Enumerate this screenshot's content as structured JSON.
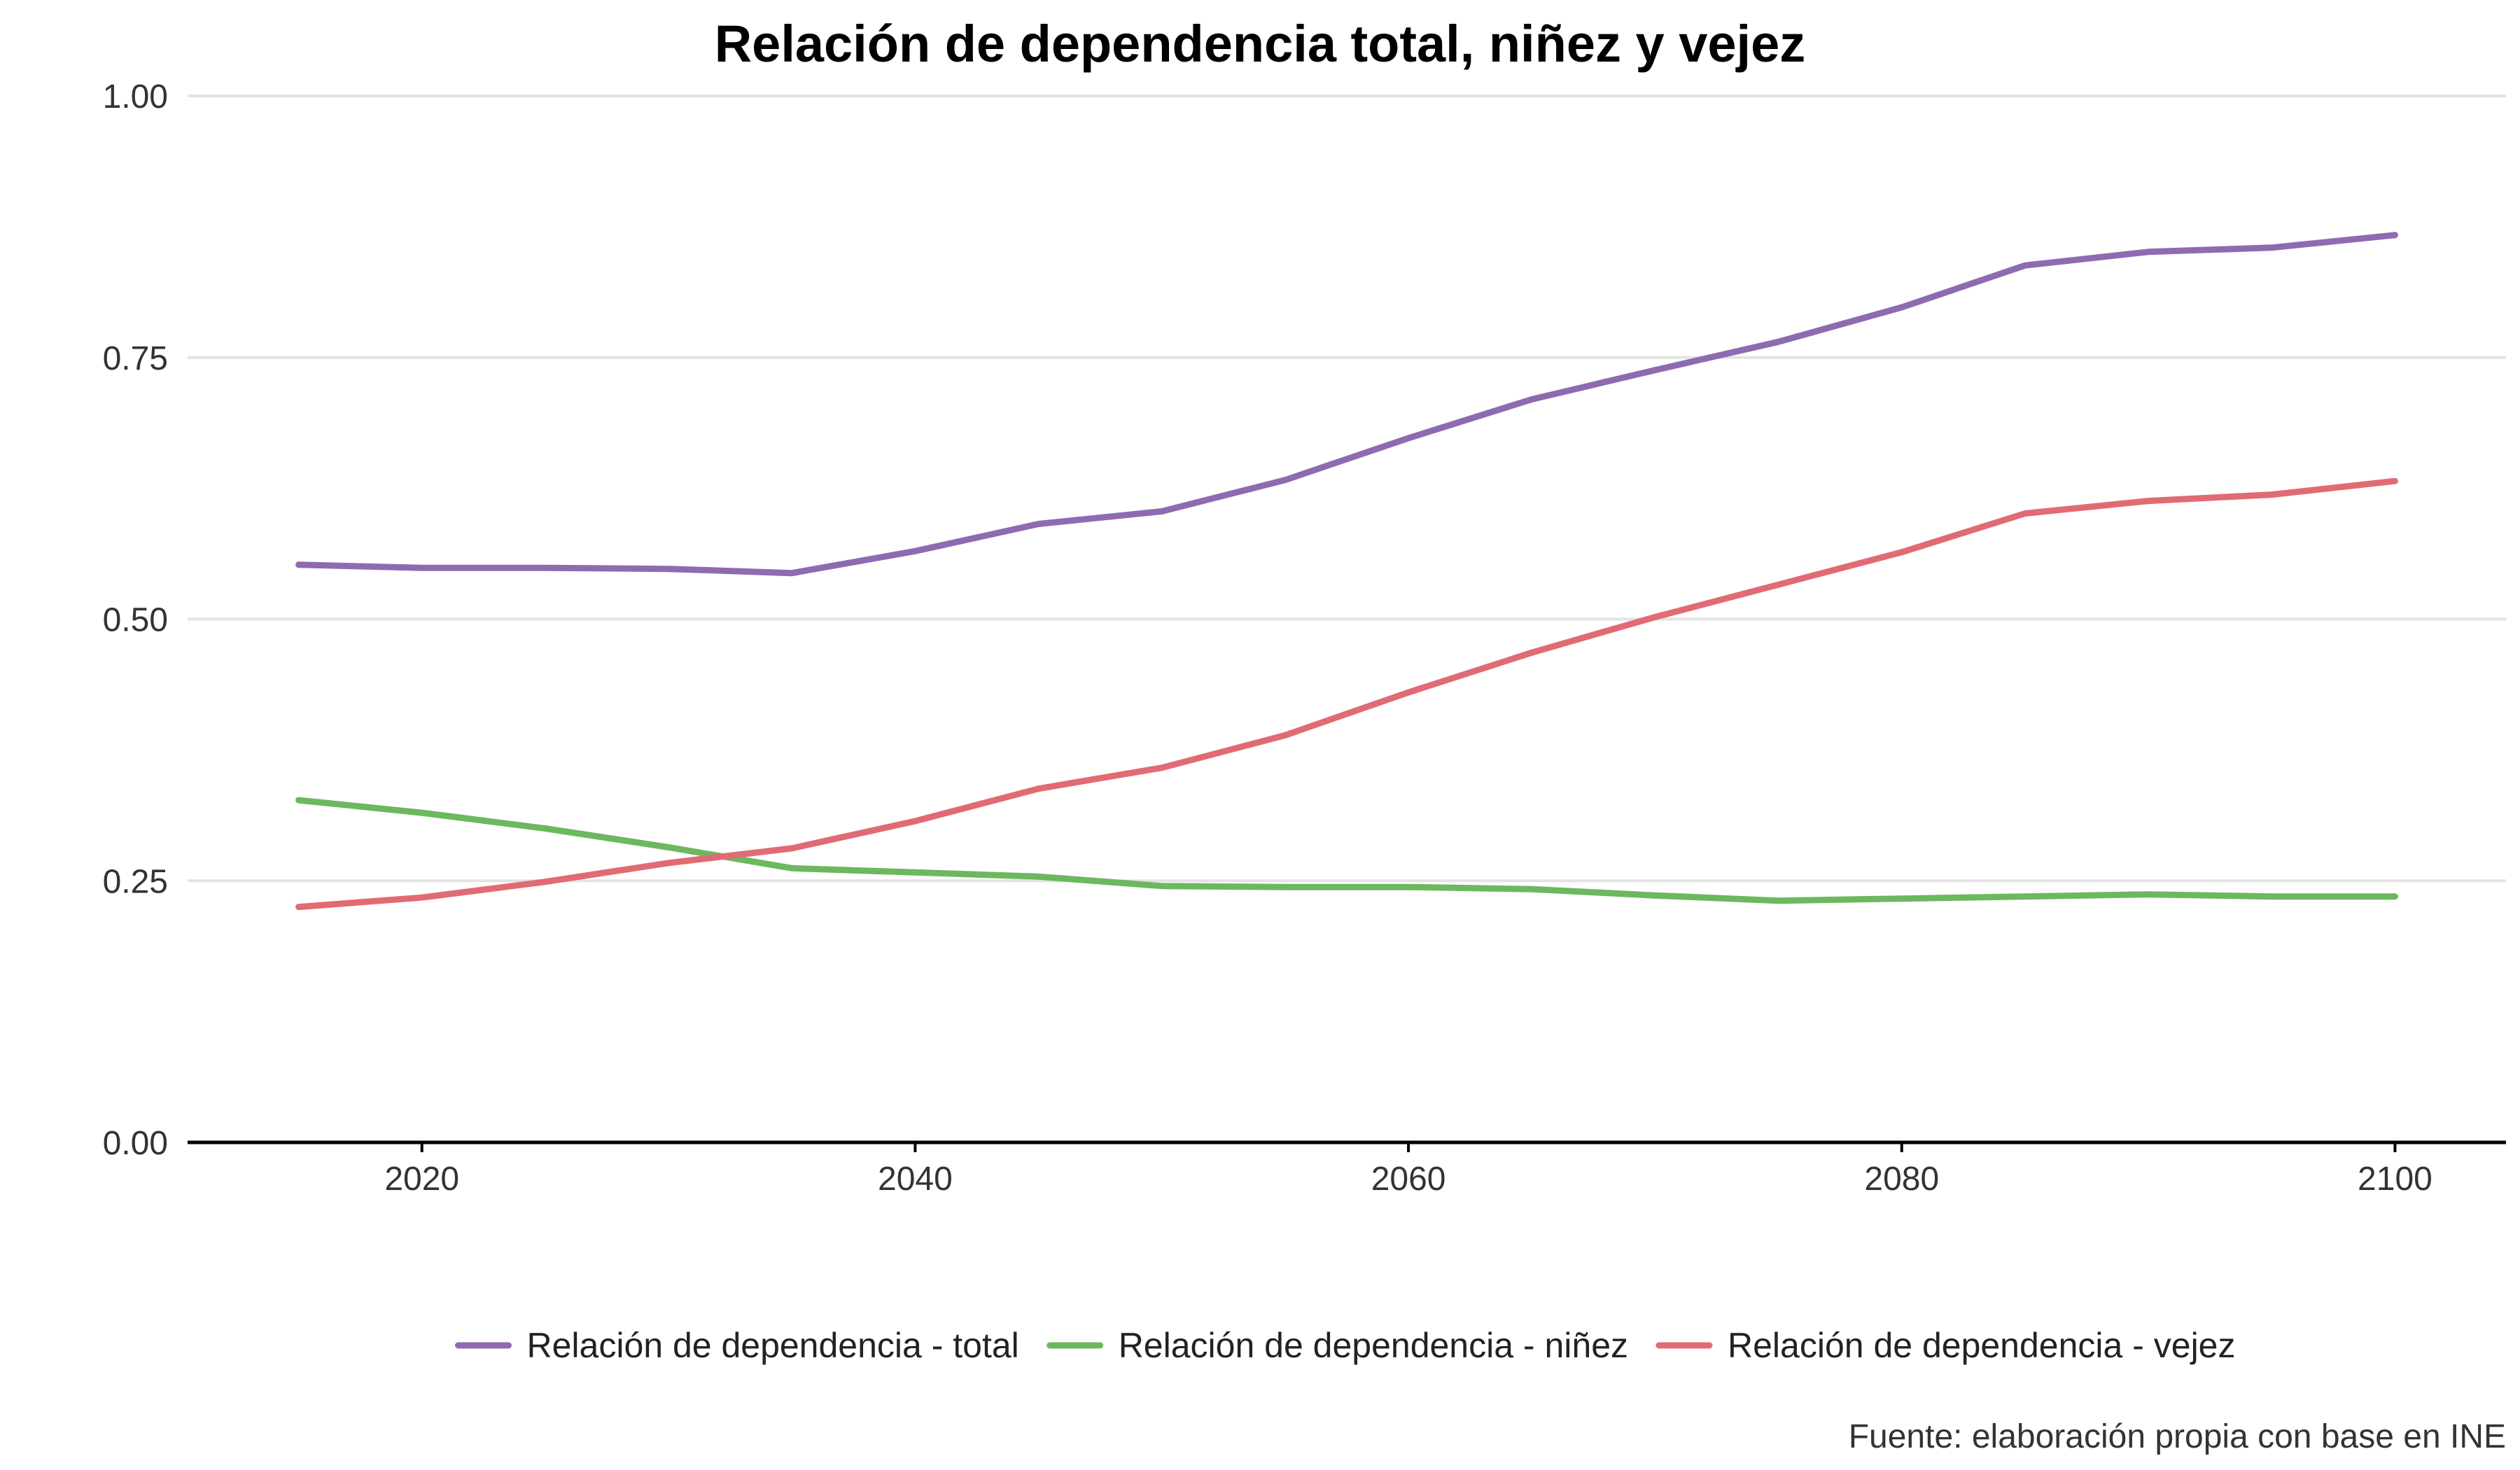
{
  "chart_data": {
    "type": "line",
    "title": "Relación de dependencia total, niñez y vejez",
    "caption": "Fuente: elaboración propia con base en INE",
    "xlabel": "",
    "ylabel": "",
    "xlim": [
      2010.5,
      2104.5
    ],
    "ylim": [
      0,
      1
    ],
    "x_ticks": [
      2020,
      2040,
      2060,
      2080,
      2100
    ],
    "y_ticks": [
      0,
      0.25,
      0.5,
      0.75,
      1
    ],
    "y_tick_labels": [
      "0.00",
      "0.25",
      "0.50",
      "0.75",
      "1.00"
    ],
    "grid": "horizontal",
    "legend_position": "bottom",
    "x": [
      2015,
      2020,
      2025,
      2030,
      2035,
      2040,
      2045,
      2050,
      2055,
      2060,
      2065,
      2070,
      2075,
      2080,
      2085,
      2090,
      2095,
      2100
    ],
    "series": [
      {
        "name": "Relación de dependencia - total",
        "color": "#8e6bb0",
        "values": [
          0.552,
          0.549,
          0.549,
          0.548,
          0.544,
          0.565,
          0.591,
          0.603,
          0.633,
          0.673,
          0.71,
          0.738,
          0.765,
          0.798,
          0.838,
          0.851,
          0.855,
          0.867
        ]
      },
      {
        "name": "Relación de dependencia - niñez",
        "color": "#6cb85e",
        "values": [
          0.327,
          0.315,
          0.3,
          0.282,
          0.262,
          0.258,
          0.254,
          0.245,
          0.244,
          0.244,
          0.242,
          0.236,
          0.231,
          0.233,
          0.235,
          0.237,
          0.235,
          0.235
        ]
      },
      {
        "name": "Relación de dependencia - vejez",
        "color": "#e06b74",
        "values": [
          0.225,
          0.234,
          0.249,
          0.267,
          0.281,
          0.307,
          0.338,
          0.358,
          0.389,
          0.43,
          0.468,
          0.502,
          0.533,
          0.564,
          0.601,
          0.613,
          0.619,
          0.632
        ]
      }
    ]
  }
}
